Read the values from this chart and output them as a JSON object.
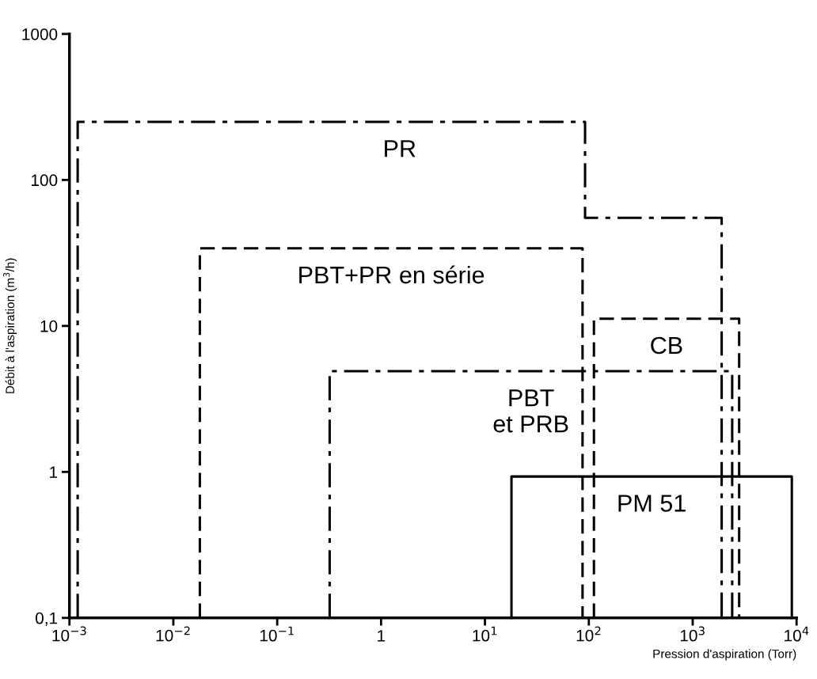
{
  "chart_data": {
    "type": "line",
    "xlabel": "Pression d'aspiration (Torr)",
    "ylabel": "Débit à l'aspiration (m$^{3}$/h)",
    "log": "xy",
    "grid": false,
    "legend": false,
    "marker": "none",
    "xlim": [
      0.001,
      10000
    ],
    "ylim": [
      0.1,
      1000
    ],
    "xticks": [
      {
        "value": 0.001,
        "label": "10$^{−3}$"
      },
      {
        "value": 0.01,
        "label": "10$^{−2}$"
      },
      {
        "value": 0.1,
        "label": "10$^{−1}$"
      },
      1,
      {
        "value": 10,
        "label": "10$^{1}$"
      },
      {
        "value": 100,
        "label": "10$^{2}$"
      },
      {
        "value": 1000,
        "label": "10$^{3}$"
      },
      {
        "value": 10000,
        "label": "10$^{4}$"
      }
    ],
    "yticks": [
      {
        "value": 0.1,
        "label": "0,1"
      },
      1,
      10,
      100,
      1000
    ],
    "series": [
      {
        "name": "PR",
        "color": "#000000",
        "line_style": "dashdot",
        "x": [
          0.0012,
          0.0012,
          92,
          92,
          1900,
          1900
        ],
        "values": [
          0.1,
          250,
          250,
          55,
          55,
          0.1
        ]
      },
      {
        "name": "PBT+PR en série",
        "color": "#000000",
        "line_style": "dashed",
        "x": [
          0.018,
          0.018,
          87,
          87
        ],
        "values": [
          0.1,
          34,
          34,
          0.1
        ]
      },
      {
        "name": "CB",
        "color": "#000000",
        "line_style": "dashed",
        "x": [
          112,
          112,
          2800,
          2800
        ],
        "values": [
          0.1,
          11.2,
          11.2,
          0.1
        ]
      },
      {
        "name": "PBT\net PRB",
        "color": "#000000",
        "line_style": "dashdot",
        "x": [
          0.32,
          0.32,
          2400,
          2400
        ],
        "values": [
          0.1,
          4.9,
          4.9,
          0.1
        ]
      },
      {
        "name": "PM 51",
        "color": "#000000",
        "line_style": "solid",
        "x": [
          18,
          18,
          9000,
          9000
        ],
        "values": [
          0.1,
          0.93,
          0.93,
          0.1
        ]
      }
    ]
  }
}
